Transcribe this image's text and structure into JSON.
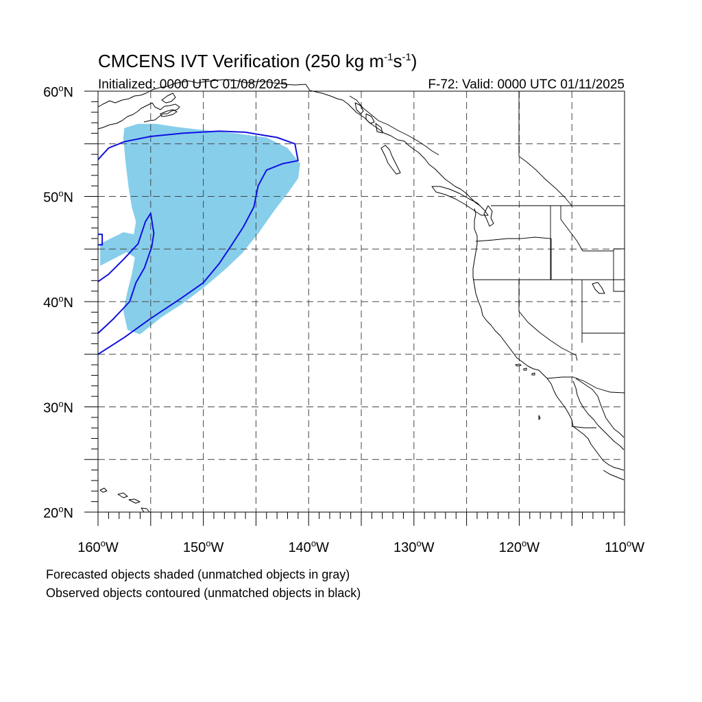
{
  "figure": {
    "title_main": "CMCENS IVT Verification (250 kg m",
    "title_exp1": "-1",
    "title_mid": "s",
    "title_exp2": "-1",
    "title_end": ")",
    "initialized": "Initialized: 0000 UTC 01/08/2025",
    "valid": "F-72: Valid: 0000 UTC 01/11/2025",
    "note_forecast": "Forecasted objects shaded (unmatched objects in gray)",
    "note_observed": "Observed objects contoured (unmatched objects in black)"
  },
  "map": {
    "lon_range": [
      -160,
      -110
    ],
    "lat_range": [
      20,
      60
    ],
    "lat_labels": [
      {
        "lat": 60,
        "num": "60",
        "sym": "o",
        "hem": "N"
      },
      {
        "lat": 50,
        "num": "50",
        "sym": "o",
        "hem": "N"
      },
      {
        "lat": 40,
        "num": "40",
        "sym": "o",
        "hem": "N"
      },
      {
        "lat": 30,
        "num": "30",
        "sym": "o",
        "hem": "N"
      },
      {
        "lat": 20,
        "num": "20",
        "sym": "o",
        "hem": "N"
      }
    ],
    "lon_labels": [
      {
        "lon": -160,
        "num": "160",
        "sym": "o",
        "hem": "W"
      },
      {
        "lon": -150,
        "num": "150",
        "sym": "o",
        "hem": "W"
      },
      {
        "lon": -140,
        "num": "140",
        "sym": "o",
        "hem": "W"
      },
      {
        "lon": -130,
        "num": "130",
        "sym": "o",
        "hem": "W"
      },
      {
        "lon": -120,
        "num": "120",
        "sym": "o",
        "hem": "W"
      },
      {
        "lon": -110,
        "num": "110",
        "sym": "o",
        "hem": "W"
      }
    ],
    "grid_lats": [
      25,
      30,
      35,
      40,
      45,
      50,
      55
    ],
    "grid_lons": [
      -155,
      -150,
      -145,
      -140,
      -135,
      -130,
      -125,
      -120,
      -115
    ],
    "colors": {
      "forecast_matched": "#87ceeb",
      "observed_matched": "#1010e0",
      "land_outline": "#000000"
    },
    "forecast_object": [
      [
        -157.5,
        56.5
      ],
      [
        -156.2,
        56.9
      ],
      [
        -154.5,
        56.9
      ],
      [
        -152.5,
        56.6
      ],
      [
        -150.0,
        56.3
      ],
      [
        -147.0,
        56.0
      ],
      [
        -144.0,
        55.6
      ],
      [
        -142.0,
        54.6
      ],
      [
        -140.8,
        53.1
      ],
      [
        -141.0,
        51.7
      ],
      [
        -142.0,
        50.3
      ],
      [
        -143.3,
        48.6
      ],
      [
        -144.7,
        46.6
      ],
      [
        -146.3,
        44.6
      ],
      [
        -148.0,
        43.0
      ],
      [
        -150.0,
        41.3
      ],
      [
        -152.0,
        39.8
      ],
      [
        -154.0,
        38.5
      ],
      [
        -156.0,
        36.9
      ],
      [
        -157.2,
        37.3
      ],
      [
        -157.6,
        39.1
      ],
      [
        -157.2,
        41.0
      ],
      [
        -156.8,
        42.6
      ],
      [
        -156.5,
        44.2
      ],
      [
        -157.3,
        44.7
      ],
      [
        -159.8,
        43.4
      ],
      [
        -159.8,
        45.5
      ],
      [
        -158.8,
        46.0
      ],
      [
        -157.6,
        46.6
      ],
      [
        -156.6,
        46.4
      ],
      [
        -156.4,
        47.6
      ],
      [
        -156.8,
        49.0
      ],
      [
        -157.1,
        50.9
      ],
      [
        -157.4,
        53.4
      ],
      [
        -157.6,
        55.6
      ]
    ],
    "observed_objects": [
      [
        [
          -160.0,
          53.5
        ],
        [
          -159.0,
          54.6
        ],
        [
          -157.5,
          55.2
        ],
        [
          -155.0,
          55.7
        ],
        [
          -152.0,
          56.0
        ],
        [
          -148.5,
          56.2
        ],
        [
          -146.0,
          56.1
        ],
        [
          -143.0,
          55.6
        ],
        [
          -141.3,
          55.0
        ],
        [
          -141.0,
          53.4
        ],
        [
          -142.5,
          53.1
        ],
        [
          -144.0,
          52.5
        ],
        [
          -144.8,
          51.0
        ],
        [
          -145.2,
          49.0
        ],
        [
          -146.2,
          47.1
        ],
        [
          -147.3,
          45.4
        ],
        [
          -148.5,
          43.6
        ],
        [
          -150.0,
          41.8
        ],
        [
          -152.0,
          40.4
        ],
        [
          -155.0,
          38.4
        ],
        [
          -157.5,
          36.6
        ],
        [
          -160.0,
          35.0
        ]
      ],
      [
        [
          -160.0,
          37.0
        ],
        [
          -158.5,
          38.4
        ],
        [
          -157.0,
          40.0
        ],
        [
          -156.4,
          41.8
        ],
        [
          -155.6,
          43.2
        ],
        [
          -154.9,
          45.2
        ],
        [
          -154.7,
          46.5
        ],
        [
          -155.0,
          48.4
        ],
        [
          -155.5,
          47.6
        ],
        [
          -156.2,
          45.5
        ],
        [
          -157.5,
          44.1
        ],
        [
          -159.0,
          42.6
        ],
        [
          -160.0,
          41.9
        ]
      ],
      [
        [
          -160.0,
          46.4
        ],
        [
          -159.6,
          46.4
        ],
        [
          -159.6,
          45.4
        ],
        [
          -160.0,
          45.4
        ]
      ]
    ]
  }
}
